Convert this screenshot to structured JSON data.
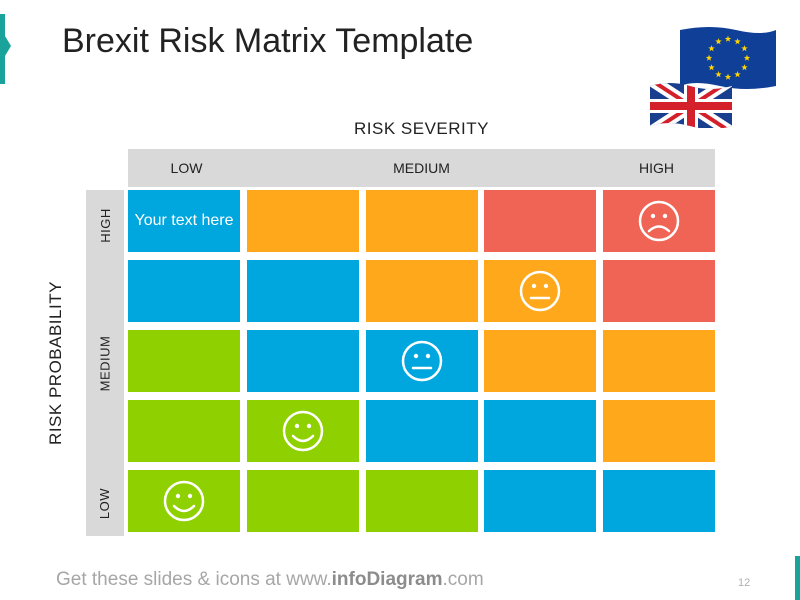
{
  "title": "Brexit Risk Matrix Template",
  "colors": {
    "blue": "#00a6de",
    "orange": "#ffa81c",
    "red": "#ef6455",
    "green": "#8fd000",
    "header_gray": "#d9d9d9",
    "accent": "#1aa39a"
  },
  "severity": {
    "axis_label": "RISK SEVERITY",
    "levels": [
      "LOW",
      "MEDIUM",
      "HIGH"
    ]
  },
  "probability": {
    "axis_label": "RISK PROBABILITY",
    "levels": [
      "HIGH",
      "MEDIUM",
      "LOW"
    ]
  },
  "matrix": {
    "rows": [
      [
        {
          "color": "blue",
          "text": "Your text here"
        },
        {
          "color": "orange"
        },
        {
          "color": "orange"
        },
        {
          "color": "red"
        },
        {
          "color": "red",
          "icon": "sad-face-icon"
        }
      ],
      [
        {
          "color": "blue"
        },
        {
          "color": "blue"
        },
        {
          "color": "orange"
        },
        {
          "color": "orange",
          "icon": "neutral-face-icon"
        },
        {
          "color": "red"
        }
      ],
      [
        {
          "color": "green"
        },
        {
          "color": "blue"
        },
        {
          "color": "blue",
          "icon": "neutral-face-icon"
        },
        {
          "color": "orange"
        },
        {
          "color": "orange"
        }
      ],
      [
        {
          "color": "green"
        },
        {
          "color": "green",
          "icon": "happy-face-icon"
        },
        {
          "color": "blue"
        },
        {
          "color": "blue"
        },
        {
          "color": "orange"
        }
      ],
      [
        {
          "color": "green",
          "icon": "happy-face-icon"
        },
        {
          "color": "green"
        },
        {
          "color": "green"
        },
        {
          "color": "blue"
        },
        {
          "color": "blue"
        }
      ]
    ]
  },
  "flags": [
    "eu-flag-icon",
    "uk-flag-icon"
  ],
  "footer": {
    "prefix": "Get these slides & icons at www.",
    "brand": "infoDiagram",
    "suffix": ".com"
  },
  "page_number": "12"
}
